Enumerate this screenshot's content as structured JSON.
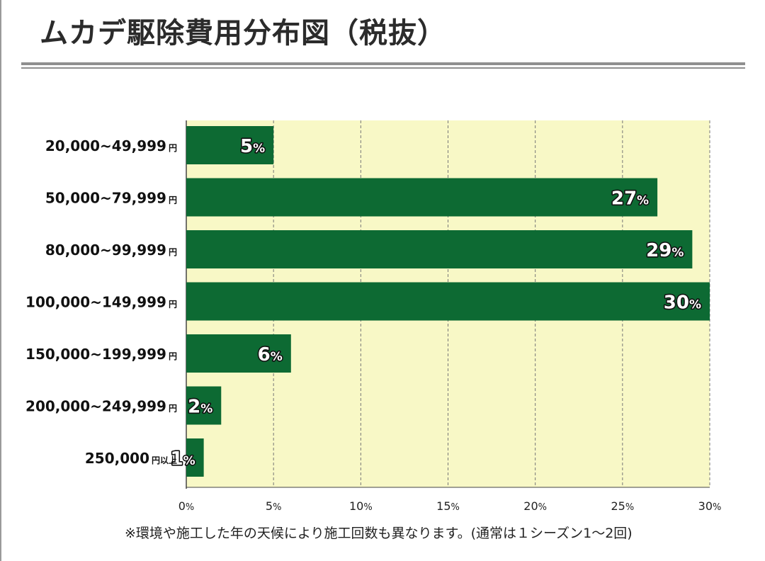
{
  "title": "ムカデ駆除費用分布図（税抜）",
  "note": "※環境や施工した年の天候により施工回数も異なります。(通常は１シーズン1〜2回)",
  "colors": {
    "bar": "#0d6a33",
    "plot_background": "#f8f8c6",
    "grid": "#777777",
    "label_text": "#111111"
  },
  "chart_data": {
    "type": "bar",
    "orientation": "horizontal",
    "categories": [
      {
        "range": "20,000~49,999",
        "unit": "円"
      },
      {
        "range": "50,000~79,999",
        "unit": "円"
      },
      {
        "range": "80,000~99,999",
        "unit": "円"
      },
      {
        "range": "100,000~149,999",
        "unit": "円"
      },
      {
        "range": "150,000~199,999",
        "unit": "円"
      },
      {
        "range": "200,000~249,999",
        "unit": "円"
      },
      {
        "range": "250,000",
        "unit": "円以上"
      }
    ],
    "values": [
      5,
      27,
      29,
      30,
      6,
      2,
      1
    ],
    "data_labels": [
      {
        "num": "5",
        "suffix": "%"
      },
      {
        "num": "27",
        "suffix": "%"
      },
      {
        "num": "29",
        "suffix": "%"
      },
      {
        "num": "30",
        "suffix": "%"
      },
      {
        "num": "6",
        "suffix": "%"
      },
      {
        "num": "2",
        "suffix": "%"
      },
      {
        "num": "1",
        "suffix": "%"
      }
    ],
    "xlim": [
      0,
      30
    ],
    "xticks": [
      {
        "value": 0,
        "num": "0",
        "suffix": "%"
      },
      {
        "value": 5,
        "num": "5",
        "suffix": "%"
      },
      {
        "value": 10,
        "num": "10",
        "suffix": "%"
      },
      {
        "value": 15,
        "num": "15",
        "suffix": "%"
      },
      {
        "value": 20,
        "num": "20",
        "suffix": "%"
      },
      {
        "value": 25,
        "num": "25",
        "suffix": "%"
      },
      {
        "value": 30,
        "num": "30",
        "suffix": "%"
      }
    ],
    "grid": "vertical-dashed",
    "legend": "none"
  }
}
